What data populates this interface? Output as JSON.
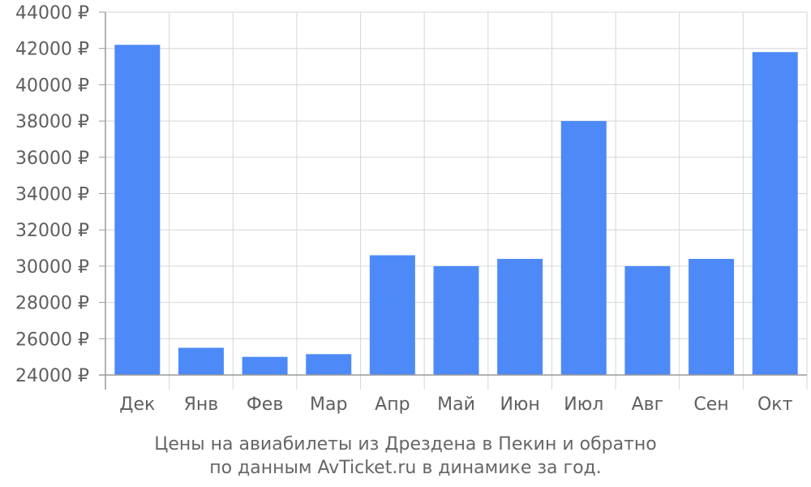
{
  "colors": {
    "bar": "#4d8af8",
    "grid": "#d6d6d6",
    "axis": "#9a9a9a",
    "text": "#5f5f5f"
  },
  "caption": {
    "line1": "Цены на авиабилеты из Дрездена в Пекин и обратно",
    "line2": "по данным AvTicket.ru в динамике за год."
  },
  "chart_data": {
    "type": "bar",
    "categories": [
      "Дек",
      "Янв",
      "Фев",
      "Мар",
      "Апр",
      "Май",
      "Июн",
      "Июл",
      "Авг",
      "Сен",
      "Окт"
    ],
    "values": [
      42200,
      25500,
      25000,
      25150,
      30600,
      30000,
      30400,
      38000,
      30000,
      30400,
      41800
    ],
    "ylim": [
      24000,
      44000
    ],
    "yticks": [
      24000,
      26000,
      28000,
      30000,
      32000,
      34000,
      36000,
      38000,
      40000,
      42000,
      44000
    ],
    "ytick_suffix": " ₽",
    "grid": true,
    "title": "",
    "xlabel": "",
    "ylabel": ""
  }
}
